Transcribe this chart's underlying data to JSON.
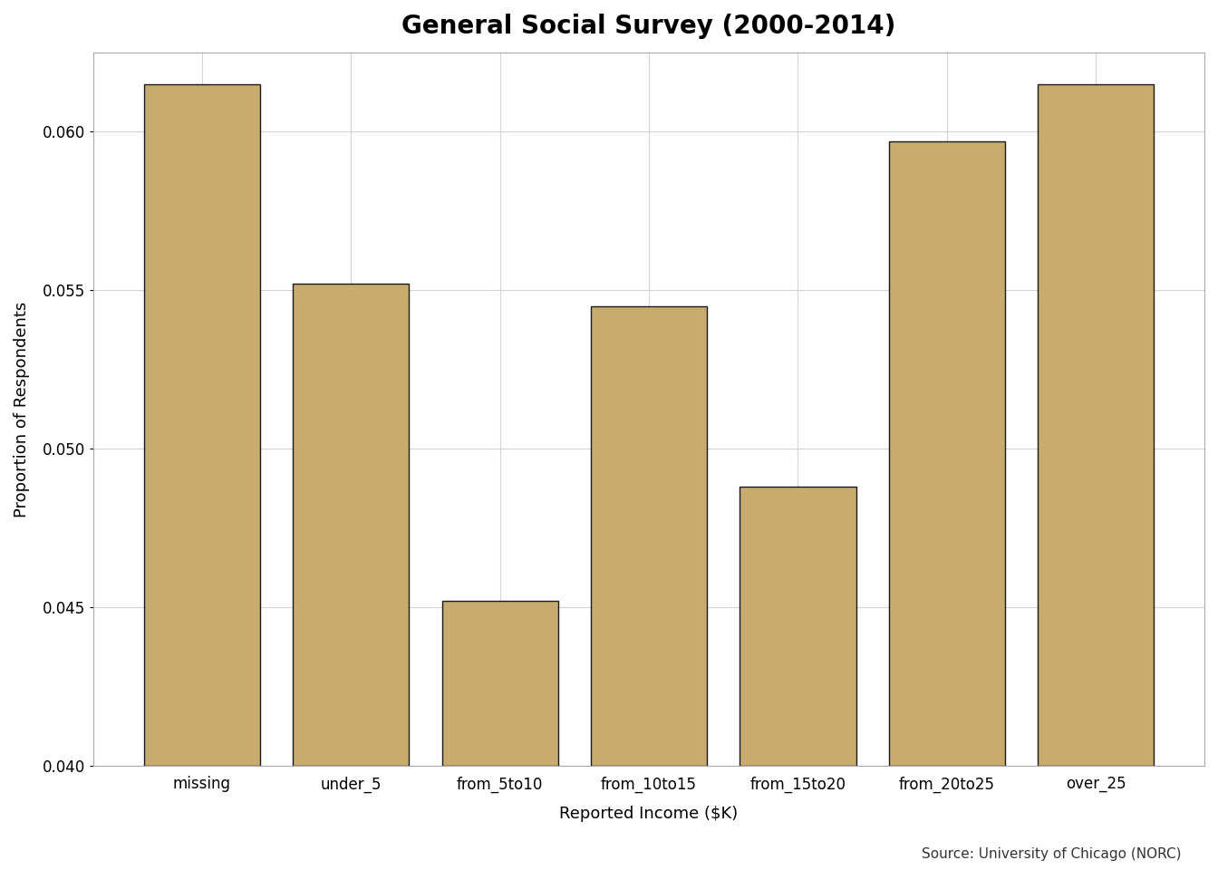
{
  "title": "General Social Survey (2000-2014)",
  "xlabel": "Reported Income ($K)",
  "ylabel": "Proportion of Respondents",
  "source": "Source: University of Chicago (NORC)",
  "categories": [
    "missing",
    "under_5",
    "from_5to10",
    "from_10to15",
    "from_15to20",
    "from_20to25",
    "over_25"
  ],
  "values": [
    0.0615,
    0.0552,
    0.0452,
    0.0545,
    0.0488,
    0.0597,
    0.0615
  ],
  "bar_color": "#C8AB6E",
  "bar_edgecolor": "#1a1a1a",
  "ylim": [
    0.04,
    0.0625
  ],
  "ymin": 0.04,
  "yticks": [
    0.04,
    0.045,
    0.05,
    0.055,
    0.06
  ],
  "background_color": "#ffffff",
  "grid_color": "#d3d3d3",
  "title_fontsize": 20,
  "axis_label_fontsize": 13,
  "tick_label_fontsize": 12,
  "source_fontsize": 11
}
